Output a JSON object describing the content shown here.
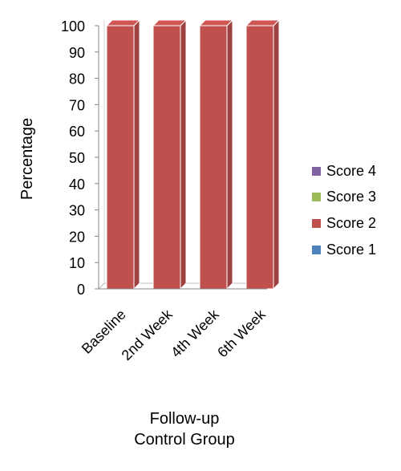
{
  "chart_data": {
    "type": "bar",
    "stacked": true,
    "style": "3d",
    "categories": [
      "Baseline",
      "2nd Week",
      "4th Week",
      "6th Week"
    ],
    "series": [
      {
        "name": "Score 1",
        "color": "#4F81BD",
        "values": [
          0,
          0,
          0,
          0
        ]
      },
      {
        "name": "Score 2",
        "color": "#C0504D",
        "values": [
          100,
          100,
          100,
          100
        ]
      },
      {
        "name": "Score 3",
        "color": "#9BBB59",
        "values": [
          0,
          0,
          0,
          0
        ]
      },
      {
        "name": "Score 4",
        "color": "#8064A2",
        "values": [
          0,
          0,
          0,
          0
        ]
      }
    ],
    "ylabel": "Percentage",
    "xlabel": "Follow-up",
    "subtitle": "Control Group",
    "ylim": [
      0,
      100
    ],
    "yticks": [
      0,
      10,
      20,
      30,
      40,
      50,
      60,
      70,
      80,
      90,
      100
    ],
    "legend": "right",
    "grid": false
  }
}
